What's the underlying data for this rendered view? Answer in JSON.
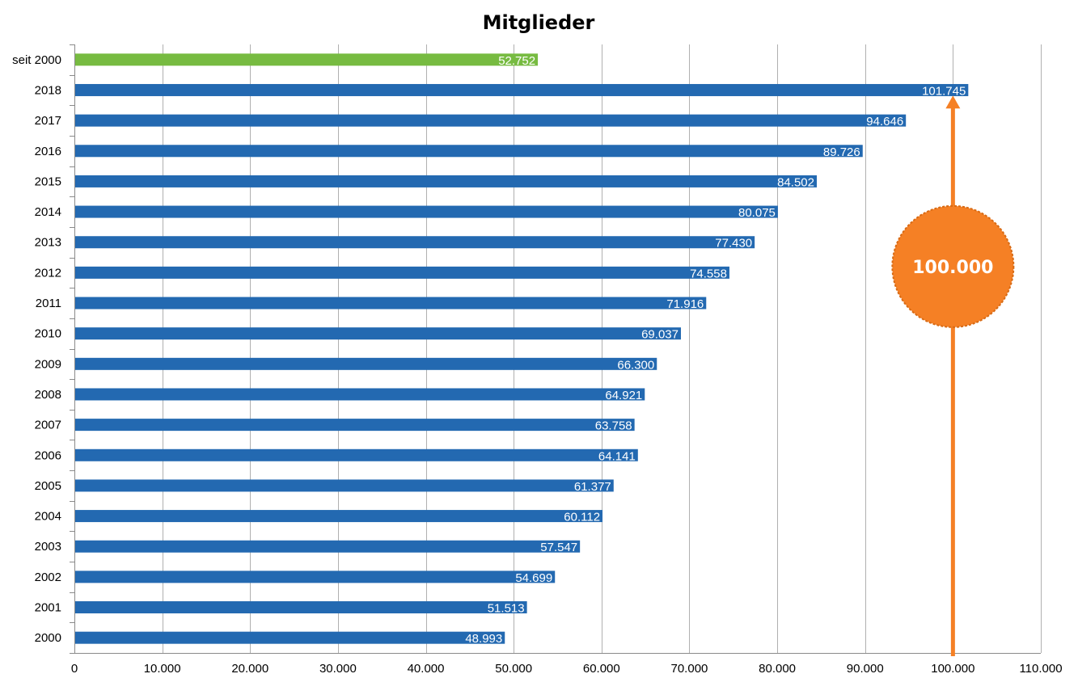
{
  "chart_data": {
    "type": "bar",
    "orientation": "horizontal",
    "title": "Mitglieder",
    "xlabel": "",
    "ylabel": "",
    "xlim": [
      0,
      110000
    ],
    "xticks": [
      0,
      10000,
      20000,
      30000,
      40000,
      50000,
      60000,
      70000,
      80000,
      90000,
      100000,
      110000
    ],
    "xtick_labels": [
      "0",
      "10.000",
      "20.000",
      "30.000",
      "40.000",
      "50.000",
      "60.000",
      "70.000",
      "80.000",
      "90.000",
      "100.000",
      "110.000"
    ],
    "grid": true,
    "categories": [
      "seit 2000",
      "2018",
      "2017",
      "2016",
      "2015",
      "2014",
      "2013",
      "2012",
      "2011",
      "2010",
      "2009",
      "2008",
      "2007",
      "2006",
      "2005",
      "2004",
      "2003",
      "2002",
      "2001",
      "2000"
    ],
    "values": [
      52752,
      101745,
      94646,
      89726,
      84502,
      80075,
      77430,
      74558,
      71916,
      69037,
      66300,
      64921,
      63758,
      64141,
      61377,
      60112,
      57547,
      54699,
      51513,
      48993
    ],
    "value_labels": [
      "52.752",
      "101.745",
      "94.646",
      "89.726",
      "84.502",
      "80.075",
      "77.430",
      "74.558",
      "71.916",
      "69.037",
      "66.300",
      "64.921",
      "63.758",
      "64.141",
      "61.377",
      "60.112",
      "57.547",
      "54.699",
      "51.513",
      "48.993"
    ],
    "bar_colors": [
      "#77bb41",
      "#2369b1",
      "#2369b1",
      "#2369b1",
      "#2369b1",
      "#2369b1",
      "#2369b1",
      "#2369b1",
      "#2369b1",
      "#2369b1",
      "#2369b1",
      "#2369b1",
      "#2369b1",
      "#2369b1",
      "#2369b1",
      "#2369b1",
      "#2369b1",
      "#2369b1",
      "#2369b1",
      "#2369b1"
    ],
    "annotation": {
      "label": "100.000",
      "value": 100000,
      "shape": "circle-with-upward-arrow",
      "color": "#f58025"
    }
  }
}
